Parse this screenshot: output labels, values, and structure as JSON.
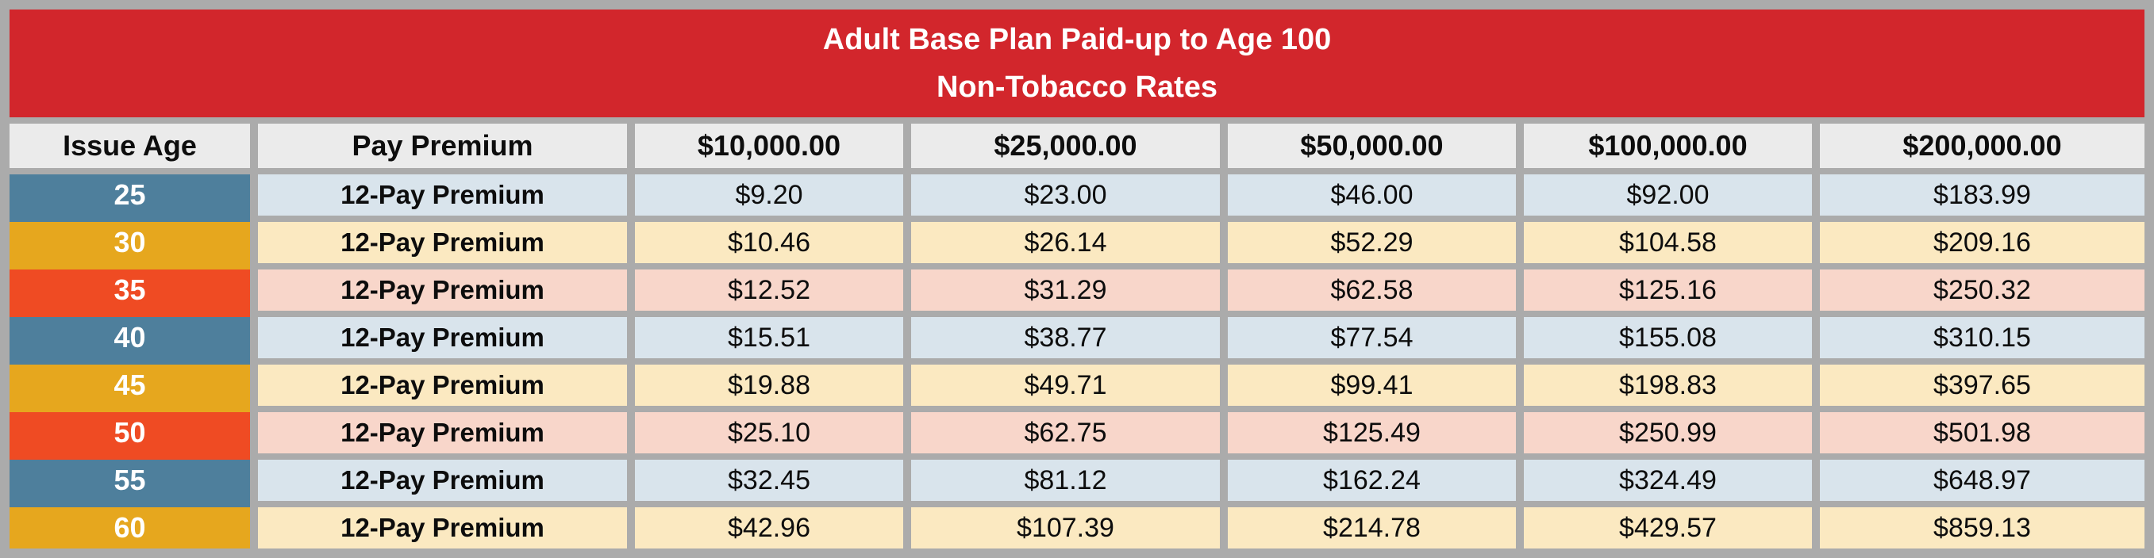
{
  "banner": {
    "title_line1": "Adult Base Plan Paid-up to Age 100",
    "title_line2": "Non-Tobacco Rates"
  },
  "table": {
    "columns": [
      "Issue Age",
      "Pay Premium",
      "$10,000.00",
      "$25,000.00",
      "$50,000.00",
      "$100,000.00",
      "$200,000.00"
    ],
    "rows": [
      {
        "age": "25",
        "label": "12-Pay Premium",
        "theme": "blue",
        "values": [
          "$9.20",
          "$23.00",
          "$46.00",
          "$92.00",
          "$183.99"
        ]
      },
      {
        "age": "30",
        "label": "12-Pay Premium",
        "theme": "amber",
        "values": [
          "$10.46",
          "$26.14",
          "$52.29",
          "$104.58",
          "$209.16"
        ]
      },
      {
        "age": "35",
        "label": "12-Pay Premium",
        "theme": "red",
        "values": [
          "$12.52",
          "$31.29",
          "$62.58",
          "$125.16",
          "$250.32"
        ]
      },
      {
        "age": "40",
        "label": "12-Pay Premium",
        "theme": "blue",
        "values": [
          "$15.51",
          "$38.77",
          "$77.54",
          "$155.08",
          "$310.15"
        ]
      },
      {
        "age": "45",
        "label": "12-Pay Premium",
        "theme": "amber",
        "values": [
          "$19.88",
          "$49.71",
          "$99.41",
          "$198.83",
          "$397.65"
        ]
      },
      {
        "age": "50",
        "label": "12-Pay Premium",
        "theme": "red",
        "values": [
          "$25.10",
          "$62.75",
          "$125.49",
          "$250.99",
          "$501.98"
        ]
      },
      {
        "age": "55",
        "label": "12-Pay Premium",
        "theme": "blue",
        "values": [
          "$32.45",
          "$81.12",
          "$162.24",
          "$324.49",
          "$648.97"
        ]
      },
      {
        "age": "60",
        "label": "12-Pay Premium",
        "theme": "amber",
        "values": [
          "$42.96",
          "$107.39",
          "$214.78",
          "$429.57",
          "$859.13"
        ]
      }
    ]
  },
  "colors": {
    "banner_red": "#d2262c",
    "frame_gray": "#ababab",
    "header_bg": "#ebebeb",
    "age_blue": "#4e7f9c",
    "age_amber": "#e6a71e",
    "age_red": "#ef4b23",
    "row_blue": "#d9e4ec",
    "row_amber": "#fbe9c1",
    "row_red": "#f8d6ca"
  }
}
